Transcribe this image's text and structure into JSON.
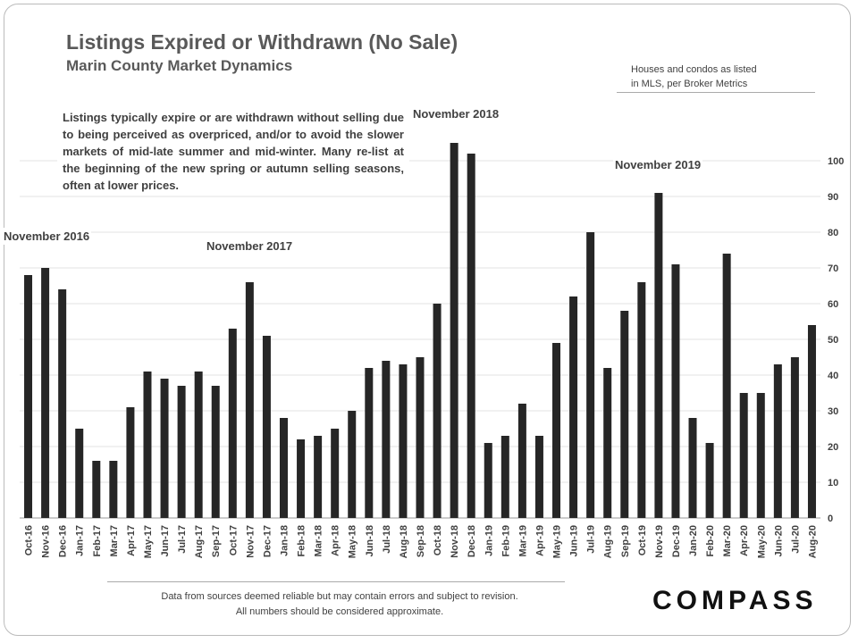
{
  "chart_data": {
    "type": "bar",
    "title": "Listings Expired or Withdrawn (No Sale)",
    "subtitle": "Marin County Market Dynamics",
    "note": [
      "Houses and condos as listed",
      "in MLS, per Broker Metrics"
    ],
    "description": "Listings typically expire or are withdrawn without selling due to being perceived as overpriced, and/or to avoid the slower markets of mid-late summer and mid-winter. Many re-list at the beginning of the new spring or autumn selling seasons, often at lower prices.",
    "annotations": [
      "November 2016",
      "November 2017",
      "November 2018",
      "November 2019"
    ],
    "footnote": [
      "Data from sources deemed reliable but may contain errors and subject to revision.",
      "All numbers should be considered approximate."
    ],
    "brand": "COMPASS",
    "categories": [
      "Oct-16",
      "Nov-16",
      "Dec-16",
      "Jan-17",
      "Feb-17",
      "Mar-17",
      "Apr-17",
      "May-17",
      "Jun-17",
      "Jul-17",
      "Aug-17",
      "Sep-17",
      "Oct-17",
      "Nov-17",
      "Dec-17",
      "Jan-18",
      "Feb-18",
      "Mar-18",
      "Apr-18",
      "May-18",
      "Jun-18",
      "Jul-18",
      "Aug-18",
      "Sep-18",
      "Oct-18",
      "Nov-18",
      "Dec-18",
      "Jan-19",
      "Feb-19",
      "Mar-19",
      "Apr-19",
      "May-19",
      "Jun-19",
      "Jul-19",
      "Aug-19",
      "Sep-19",
      "Oct-19",
      "Nov-19",
      "Dec-19",
      "Jan-20",
      "Feb-20",
      "Mar-20",
      "Apr-20",
      "May-20",
      "Jun-20",
      "Jul-20",
      "Aug-20"
    ],
    "values": [
      68,
      70,
      64,
      25,
      16,
      16,
      31,
      41,
      39,
      37,
      41,
      37,
      53,
      66,
      51,
      28,
      22,
      23,
      25,
      30,
      42,
      44,
      43,
      45,
      60,
      105,
      102,
      21,
      23,
      32,
      23,
      49,
      62,
      80,
      42,
      58,
      66,
      91,
      71,
      28,
      21,
      74,
      35,
      35,
      43,
      45,
      54
    ],
    "color": "#262626",
    "ylim": [
      0,
      105
    ],
    "yticks": [
      0,
      10,
      20,
      30,
      40,
      50,
      60,
      70,
      80,
      90,
      100
    ],
    "grid": true
  }
}
